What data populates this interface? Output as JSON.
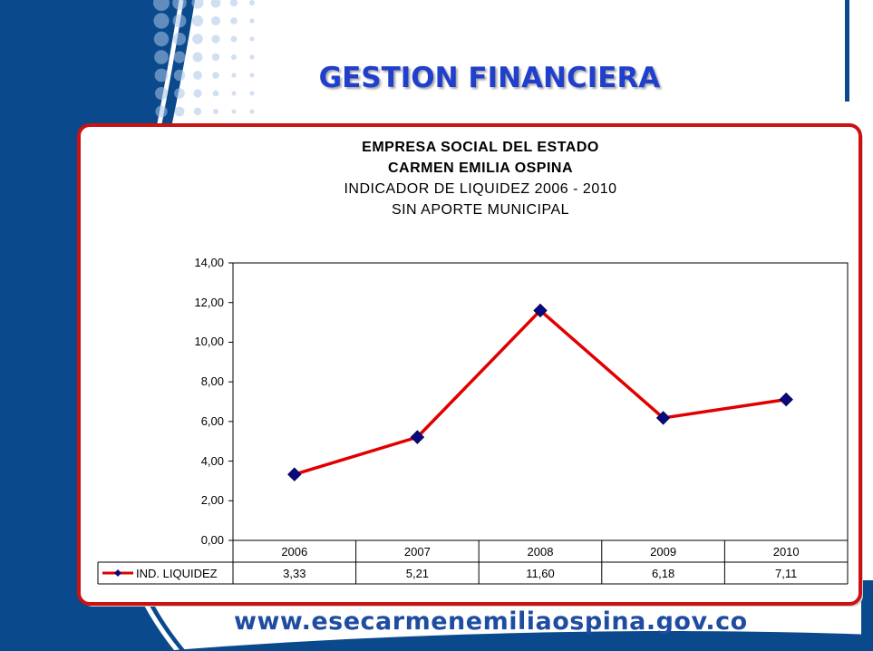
{
  "slide_title": "GESTION FINANCIERA",
  "footer_url": "www.esecarmenemiliaospina.gov.co",
  "colors": {
    "title": "#1f3fcc",
    "frame_border": "#cc1111",
    "series_line": "#e00000",
    "marker": "#0a0a80",
    "side_band": "#0a4a8c"
  },
  "chart_data": {
    "type": "line",
    "title_lines": [
      "EMPRESA SOCIAL DEL ESTADO",
      "CARMEN EMILIA OSPINA",
      "INDICADOR DE LIQUIDEZ 2006 - 2010",
      "SIN APORTE MUNICIPAL"
    ],
    "categories": [
      "2006",
      "2007",
      "2008",
      "2009",
      "2010"
    ],
    "series": [
      {
        "name": "IND. LIQUIDEZ",
        "values": [
          3.33,
          5.21,
          11.6,
          6.18,
          7.11
        ],
        "labels": [
          "3,33",
          "5,21",
          "11,60",
          "6,18",
          "7,11"
        ]
      }
    ],
    "ylim": [
      0,
      14
    ],
    "yticks": [
      "0,00",
      "2,00",
      "4,00",
      "6,00",
      "8,00",
      "10,00",
      "12,00",
      "14,00"
    ],
    "data_table": true,
    "grid": false
  }
}
